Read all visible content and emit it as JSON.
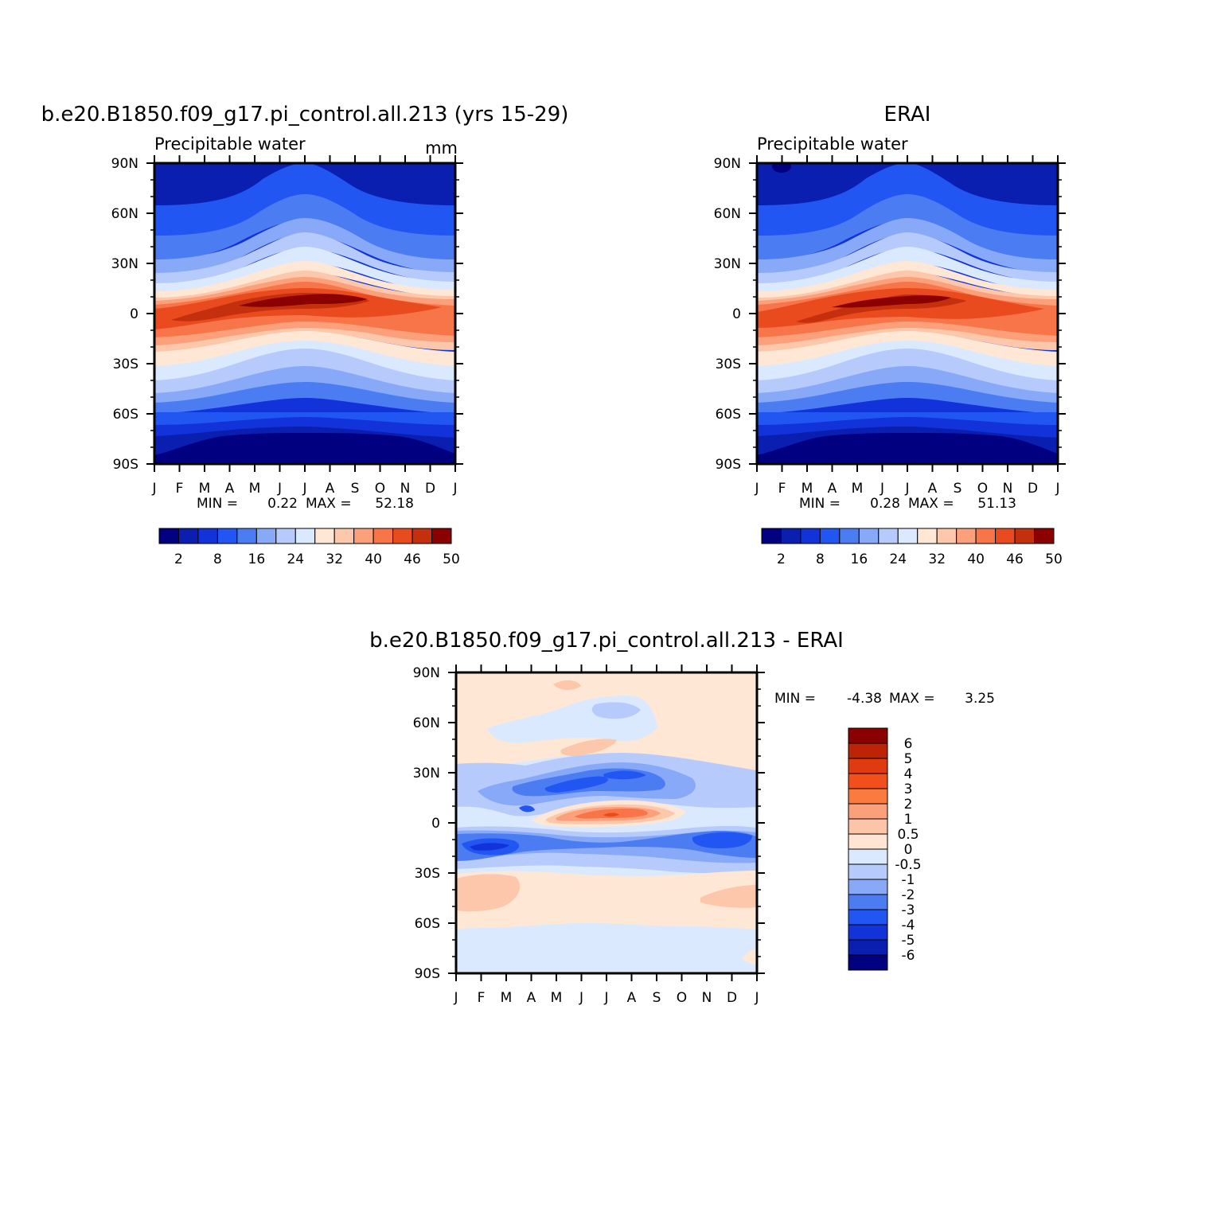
{
  "chart_data": [
    {
      "type": "heatmap",
      "title": "b.e20.B1850.f09_g17.pi_control.all.213 (yrs 15-29)",
      "subtitle_left": "Precipitable water",
      "subtitle_right": "mm",
      "x_tick_labels": [
        "J",
        "F",
        "M",
        "A",
        "M",
        "J",
        "J",
        "A",
        "S",
        "O",
        "N",
        "D",
        "J"
      ],
      "y_tick_labels": [
        "90N",
        "60N",
        "30N",
        "0",
        "30S",
        "60S",
        "90S"
      ],
      "ylim": [
        -90,
        90
      ],
      "min_label": "MIN =",
      "min_value": "0.22",
      "max_label": "MAX =",
      "max_value": "52.18",
      "colorbar_levels": [
        2,
        4,
        6,
        8,
        10,
        12,
        16,
        20,
        24,
        28,
        32,
        36,
        40,
        44,
        46,
        48,
        50
      ],
      "colorbar_labels": [
        "2",
        "8",
        "16",
        "24",
        "32",
        "40",
        "46",
        "50"
      ],
      "colorbar_colors": [
        "#000080",
        "#0a1fb0",
        "#1233da",
        "#2256f2",
        "#4b7cf2",
        "#88a9f7",
        "#b6cbfb",
        "#dbe9fe",
        "#ffe7d5",
        "#fcc7aa",
        "#fba07b",
        "#f77548",
        "#e94b1e",
        "#c42f0d",
        "#8b0000"
      ]
    },
    {
      "type": "heatmap",
      "title": "ERAI",
      "subtitle_left": "Precipitable water",
      "x_tick_labels": [
        "J",
        "F",
        "M",
        "A",
        "M",
        "J",
        "J",
        "A",
        "S",
        "O",
        "N",
        "D",
        "J"
      ],
      "y_tick_labels": [
        "90N",
        "60N",
        "30N",
        "0",
        "30S",
        "60S",
        "90S"
      ],
      "ylim": [
        -90,
        90
      ],
      "min_label": "MIN =",
      "min_value": "0.28",
      "max_label": "MAX =",
      "max_value": "51.13",
      "colorbar_labels": [
        "2",
        "8",
        "16",
        "24",
        "32",
        "40",
        "46",
        "50"
      ]
    },
    {
      "type": "heatmap",
      "title": "b.e20.B1850.f09_g17.pi_control.all.213 - ERAI",
      "x_tick_labels": [
        "J",
        "F",
        "M",
        "A",
        "M",
        "J",
        "J",
        "A",
        "S",
        "O",
        "N",
        "D",
        "J"
      ],
      "y_tick_labels": [
        "90N",
        "60N",
        "30N",
        "0",
        "30S",
        "60S",
        "90S"
      ],
      "ylim": [
        -90,
        90
      ],
      "min_label": "MIN =",
      "min_value": "-4.38",
      "max_label": "MAX =",
      "max_value": "3.25",
      "colorbar_labels": [
        "6",
        "5",
        "4",
        "3",
        "2",
        "1",
        "0.5",
        "0",
        "-0.5",
        "-1",
        "-2",
        "-3",
        "-4",
        "-5",
        "-6"
      ],
      "colorbar_colors": [
        "#8b0000",
        "#bd2305",
        "#df3a10",
        "#f24f1c",
        "#fb7a40",
        "#fba07b",
        "#fcc5a8",
        "#ffe5d2",
        "#dbe9fe",
        "#b6cbfb",
        "#88a9f7",
        "#4b7cf2",
        "#2256f2",
        "#1233da",
        "#0a1fb0",
        "#000080"
      ]
    }
  ]
}
